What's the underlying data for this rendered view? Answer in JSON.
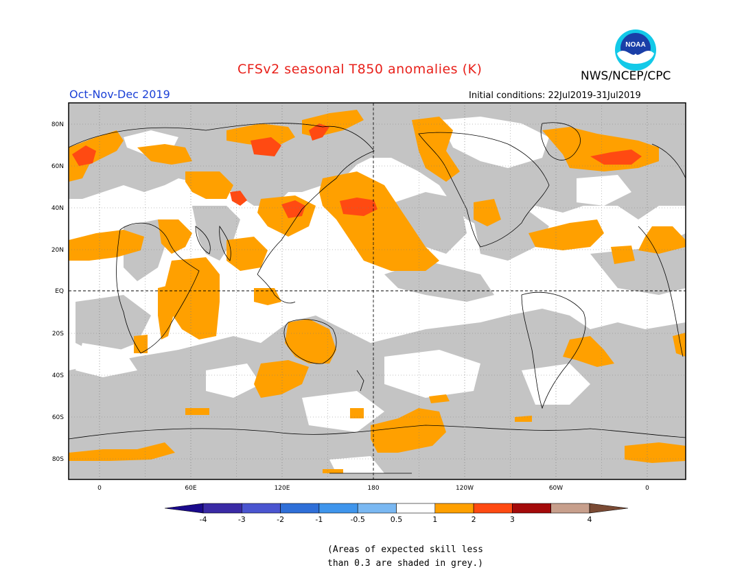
{
  "title": "CFSv2 seasonal T850 anomalies (K)",
  "agency": "NWS/NCEP/CPC",
  "logo_text": "NOAA",
  "season": "Oct-Nov-Dec 2019",
  "initial_conditions": "Initial conditions: 22Jul2019-31Jul2019",
  "lat_labels": [
    "80N",
    "60N",
    "40N",
    "20N",
    "EQ",
    "20S",
    "40S",
    "60S",
    "80S"
  ],
  "lon_labels": [
    "0",
    "60E",
    "120E",
    "180",
    "120W",
    "60W",
    "0"
  ],
  "colorbar": {
    "labels": [
      "-4",
      "-3",
      "-2",
      "-1",
      "-0.5",
      "0.5",
      "1",
      "2",
      "3",
      "4"
    ],
    "colors": [
      "#3a2aa5",
      "#4a55d0",
      "#2f6fd8",
      "#3f95ec",
      "#7ab8f2",
      "#ffffff",
      "#ffa000",
      "#ff4a12",
      "#a40a0a",
      "#c79f8c"
    ],
    "low_end_color": "#1a0a8c",
    "high_end_color": "#7a4a34"
  },
  "map_colors": {
    "grey": "#c4c4c4",
    "orange": "#ffa000",
    "red": "#ff4a12",
    "white": "#ffffff"
  },
  "note_lines": [
    "(Areas of expected skill less",
    "than 0.3 are shaded in grey.)"
  ]
}
